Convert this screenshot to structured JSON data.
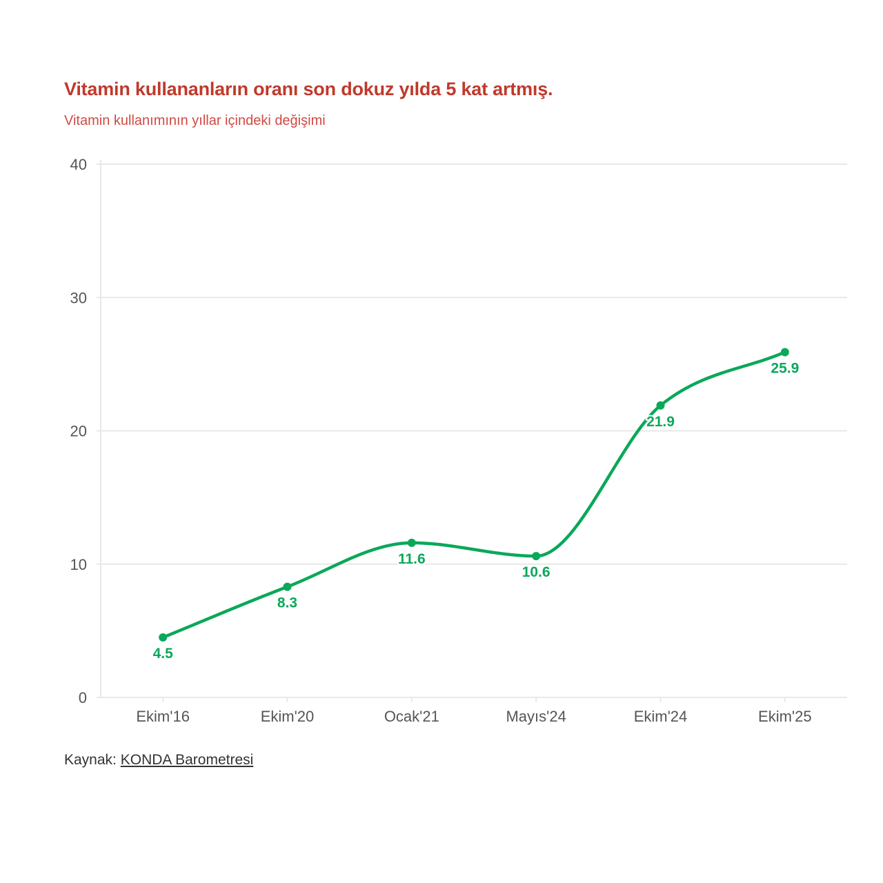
{
  "title": "Vitamin kullananların oranı son dokuz yılda 5 kat artmış.",
  "subtitle": "Vitamin kullanımının yıllar içindeki değişimi",
  "source": {
    "label": "Kaynak:",
    "link_text": "KONDA Barometresi"
  },
  "colors": {
    "title": "#c0392b",
    "line": "#0aa85a",
    "grid": "#e8e8e8",
    "axis_text": "#555555"
  },
  "chart_data": {
    "type": "line",
    "title": "Vitamin kullananların oranı son dokuz yılda 5 kat artmış.",
    "subtitle": "Vitamin kullanımının yıllar içindeki değişimi",
    "categories": [
      "Ekim'16",
      "Ekim'20",
      "Ocak'21",
      "Mayıs'24",
      "Ekim'24",
      "Ekim'25"
    ],
    "values": [
      4.5,
      8.3,
      11.6,
      10.6,
      21.9,
      25.9
    ],
    "value_labels": [
      "4.5",
      "8.3",
      "11.6",
      "10.6",
      "21.9",
      "25.9"
    ],
    "ylim": [
      0,
      40
    ],
    "yticks": [
      "0",
      "10",
      "20",
      "30",
      "40"
    ],
    "grid": true,
    "smooth": true,
    "xlabel": "",
    "ylabel": ""
  }
}
